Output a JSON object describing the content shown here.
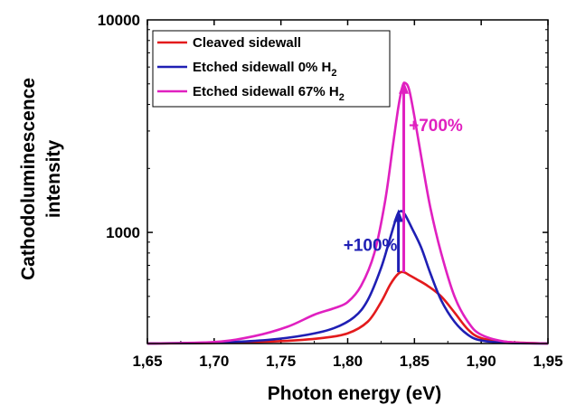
{
  "chart_data": {
    "type": "line",
    "xlabel": "Photon energy (eV)",
    "ylabel_line1": "Cathodoluminescence",
    "ylabel_line2": "intensity",
    "xlim": [
      1.65,
      1.95
    ],
    "ylim": [
      300,
      10000
    ],
    "y_scale": "log",
    "x_ticks": [
      1.65,
      1.7,
      1.75,
      1.8,
      1.85,
      1.9,
      1.95
    ],
    "x_tick_labels": [
      "1,65",
      "1,70",
      "1,75",
      "1,80",
      "1,85",
      "1,90",
      "1,95"
    ],
    "y_tick_labels": [
      {
        "value": 1000,
        "label": "1000"
      },
      {
        "value": 10000,
        "label": "10000"
      }
    ],
    "legend_position": "top-left",
    "series": [
      {
        "name": "Cleaved sidewall",
        "name_main": "Cleaved sidewall",
        "name_sub": "",
        "color": "#e31a1c",
        "x": [
          1.65,
          1.7,
          1.75,
          1.78,
          1.8,
          1.815,
          1.825,
          1.832,
          1.838,
          1.842,
          1.846,
          1.852,
          1.86,
          1.87,
          1.88,
          1.89,
          1.9,
          1.92,
          1.95
        ],
        "y": [
          300,
          302,
          308,
          318,
          335,
          380,
          470,
          570,
          640,
          650,
          630,
          600,
          560,
          500,
          420,
          350,
          318,
          305,
          300
        ]
      },
      {
        "name": "Etched sidewall 0% H2",
        "name_main": "Etched sidewall 0% H",
        "name_sub": "2",
        "color": "#1f1fb4",
        "x": [
          1.65,
          1.7,
          1.74,
          1.77,
          1.79,
          1.805,
          1.815,
          1.825,
          1.832,
          1.837,
          1.84,
          1.843,
          1.848,
          1.855,
          1.862,
          1.87,
          1.88,
          1.89,
          1.9,
          1.92,
          1.95
        ],
        "y": [
          300,
          303,
          312,
          330,
          355,
          400,
          480,
          680,
          950,
          1200,
          1260,
          1210,
          1050,
          850,
          640,
          480,
          380,
          330,
          310,
          302,
          300
        ]
      },
      {
        "name": "Etched sidewall 67% H2",
        "name_main": "Etched sidewall 67% H",
        "name_sub": "2",
        "color": "#e020c0",
        "x": [
          1.65,
          1.7,
          1.73,
          1.755,
          1.775,
          1.79,
          1.8,
          1.81,
          1.82,
          1.828,
          1.834,
          1.838,
          1.841,
          1.843,
          1.846,
          1.85,
          1.856,
          1.862,
          1.87,
          1.88,
          1.89,
          1.9,
          1.92,
          1.95
        ],
        "y": [
          300,
          305,
          325,
          360,
          410,
          440,
          470,
          560,
          800,
          1400,
          2600,
          3900,
          4850,
          5050,
          4700,
          3500,
          2100,
          1300,
          800,
          500,
          380,
          330,
          305,
          300
        ]
      }
    ],
    "annotations": [
      {
        "text": "+100%",
        "x": 1.817,
        "y": 820,
        "color": "#1f1fb4"
      },
      {
        "text": "+700%",
        "x": 1.866,
        "y": 3000,
        "color": "#e020c0"
      }
    ],
    "arrows": [
      {
        "x": 1.838,
        "from_y": 650,
        "to_y": 1260,
        "color": "#1f1fb4"
      },
      {
        "x": 1.842,
        "from_y": 650,
        "to_y": 5050,
        "color": "#e020c0"
      }
    ]
  }
}
